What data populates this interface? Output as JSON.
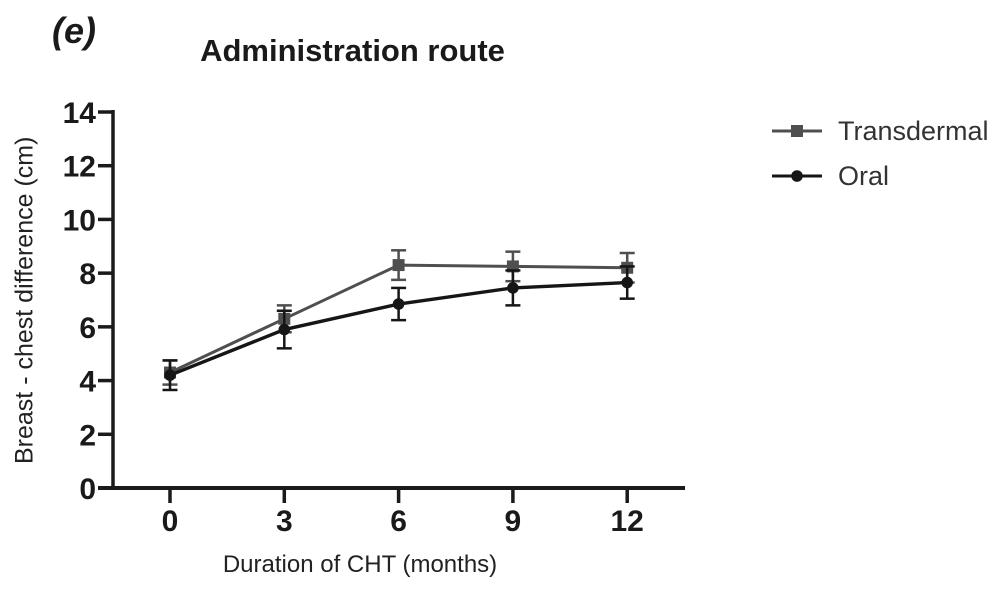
{
  "figure": {
    "panel_label": "(e)",
    "title": "Administration route",
    "xlabel": "Duration of CHT (months)",
    "ylabel": "Breast - chest difference (cm)"
  },
  "chart_data": {
    "type": "line",
    "panel_label": "(e)",
    "title": "Administration route",
    "xlabel": "Duration of CHT (months)",
    "ylabel": "Breast - chest difference (cm)",
    "x": [
      0,
      3,
      6,
      9,
      12
    ],
    "xticks": [
      0,
      3,
      6,
      9,
      12
    ],
    "yticks": [
      0,
      2,
      4,
      6,
      8,
      10,
      12,
      14
    ],
    "ylim": [
      0,
      14
    ],
    "grid": false,
    "error_bars": true,
    "legend_position": "right",
    "series": [
      {
        "name": "Transdermal",
        "marker": "square",
        "color": "#4f4f4f",
        "values": [
          4.3,
          6.3,
          8.3,
          8.25,
          8.2
        ],
        "errors": [
          0.45,
          0.5,
          0.55,
          0.55,
          0.55
        ]
      },
      {
        "name": "Oral",
        "marker": "circle",
        "color": "#161616",
        "values": [
          4.2,
          5.9,
          6.85,
          7.45,
          7.65
        ],
        "errors": [
          0.55,
          0.7,
          0.6,
          0.65,
          0.6
        ]
      }
    ]
  },
  "colors": {
    "axis": "#1a1a1a",
    "background": "#ffffff",
    "legend_text": "#333333"
  }
}
